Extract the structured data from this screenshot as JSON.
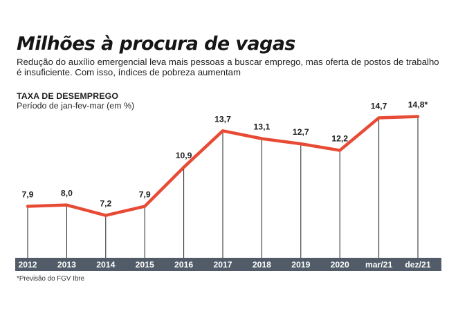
{
  "page": {
    "title": "Milhões à procura de vagas",
    "subtitle": "Redução do auxílio emergencial leva mais pessoas a buscar emprego, mas oferta de postos de trabalho é insuficiente. Com isso, índices de pobreza aumentam",
    "footnote": "*Previsão do FGV Ibre"
  },
  "colors": {
    "line": "#e84b35",
    "axis_band": "#525c69",
    "axis_text": "#ffffff",
    "guide": "#202020",
    "text": "#1f1f1f"
  },
  "chart_data": {
    "type": "line",
    "title": "TAXA DE DESEMPREGO",
    "subtitle": "Período de jan-fev-mar (em %)",
    "categories": [
      "2012",
      "2013",
      "2014",
      "2015",
      "2016",
      "2017",
      "2018",
      "2019",
      "2020",
      "mar/21",
      "dez/21"
    ],
    "series": [
      {
        "values": [
          7.9,
          8.0,
          7.2,
          7.9,
          10.9,
          13.7,
          13.1,
          12.7,
          12.2,
          14.7,
          14.8
        ]
      }
    ],
    "data_labels": [
      "7,9",
      "8,0",
      "7,2",
      "7,9",
      "10,9",
      "13,7",
      "13,1",
      "12,7",
      "12,2",
      "14,7",
      "14,8*"
    ],
    "xlabel": "",
    "ylabel": "",
    "ylim": [
      4,
      16
    ],
    "grid": false,
    "legend": "none"
  }
}
